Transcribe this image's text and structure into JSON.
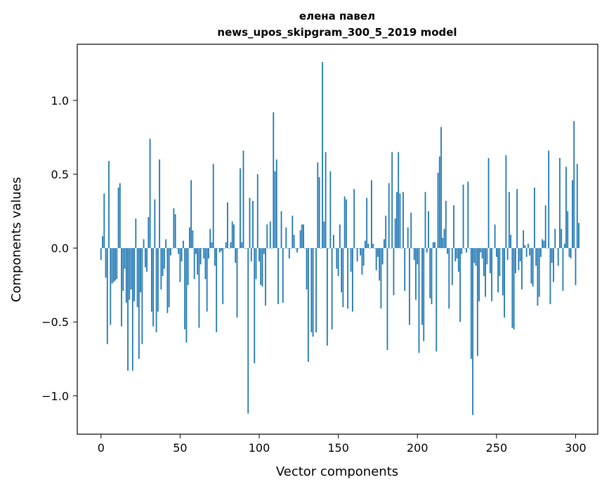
{
  "chart_data": {
    "type": "bar",
    "title": "елена павел",
    "subtitle": "news_upos_skipgram_300_5_2019 model",
    "xlabel": "Vector components",
    "ylabel": "Components values",
    "xlim": [
      -15,
      314
    ],
    "ylim": [
      -1.26,
      1.38
    ],
    "xticks": [
      0,
      50,
      100,
      150,
      200,
      250,
      300
    ],
    "yticks": [
      1.0,
      0.5,
      0.0,
      -0.5,
      -1.0
    ],
    "ytick_labels": [
      "1.0",
      "0.5",
      "0.0",
      "−0.5",
      "−1.0"
    ],
    "grid": false,
    "bar_color": "#1f77b4",
    "x_start": 0,
    "values": [
      -0.08,
      0.08,
      0.37,
      -0.2,
      -0.65,
      0.59,
      -0.52,
      -0.24,
      -0.23,
      -0.22,
      -0.21,
      0.41,
      0.44,
      -0.53,
      -0.29,
      -0.14,
      -0.37,
      -0.83,
      -0.35,
      -0.28,
      -0.83,
      -0.36,
      0.2,
      -0.4,
      -0.75,
      -0.3,
      -0.65,
      0.06,
      -0.13,
      -0.16,
      0.21,
      0.74,
      -0.43,
      -0.53,
      0.33,
      -0.57,
      -0.43,
      0.6,
      -0.28,
      -0.19,
      -0.14,
      0.06,
      -0.44,
      -0.4,
      -0.05,
      0.0,
      0.27,
      0.23,
      0.0,
      -0.04,
      -0.23,
      -0.09,
      0.05,
      -0.55,
      -0.64,
      -0.25,
      0.14,
      0.46,
      0.12,
      -0.21,
      -0.04,
      -0.18,
      -0.54,
      -0.11,
      0.0,
      -0.07,
      -0.21,
      -0.43,
      -0.07,
      0.13,
      0.04,
      0.57,
      -0.12,
      -0.57,
      0.0,
      -0.03,
      -0.02,
      -0.38,
      0.0,
      0.04,
      0.31,
      0.0,
      0.04,
      0.18,
      0.16,
      -0.1,
      -0.47,
      0.0,
      0.54,
      0.04,
      0.66,
      0.0,
      0.0,
      -1.12,
      0.34,
      -0.09,
      0.32,
      -0.78,
      -0.21,
      0.5,
      -0.09,
      -0.25,
      -0.26,
      -0.04,
      -0.39,
      0.16,
      0.0,
      0.18,
      0.0,
      0.92,
      0.52,
      0.6,
      -0.38,
      0.0,
      0.25,
      -0.37,
      0.0,
      0.14,
      0.0,
      -0.07,
      0.0,
      0.22,
      0.09,
      0.0,
      -0.03,
      0.0,
      0.12,
      0.16,
      0.16,
      0.0,
      -0.28,
      -0.77,
      0.0,
      -0.57,
      -0.6,
      0.0,
      -0.57,
      0.58,
      0.48,
      0.0,
      1.26,
      0.18,
      0.65,
      -0.66,
      0.0,
      0.52,
      -0.55,
      0.09,
      0.0,
      -0.14,
      -0.19,
      0.16,
      -0.3,
      -0.4,
      0.35,
      0.33,
      -0.41,
      0.0,
      -0.16,
      -0.43,
      0.4,
      0.0,
      -0.09,
      0.0,
      -0.05,
      -0.18,
      -0.12,
      0.05,
      0.34,
      0.03,
      0.0,
      0.46,
      0.03,
      0.0,
      -0.15,
      -0.06,
      -0.22,
      -0.41,
      -0.11,
      0.06,
      0.22,
      -0.69,
      0.44,
      0.0,
      0.65,
      -0.32,
      0.2,
      0.38,
      0.65,
      0.37,
      0.0,
      0.38,
      -0.29,
      0.0,
      0.14,
      -0.52,
      0.24,
      0.0,
      -0.08,
      -0.35,
      -0.11,
      -0.71,
      0.0,
      -0.52,
      -0.63,
      0.38,
      -0.03,
      0.25,
      -0.34,
      -0.38,
      0.04,
      0.04,
      -0.7,
      0.51,
      0.62,
      0.82,
      0.07,
      0.13,
      0.32,
      -0.04,
      -0.41,
      0.0,
      -0.25,
      0.29,
      -0.09,
      -0.07,
      -0.16,
      -0.5,
      -0.04,
      0.43,
      0.0,
      -0.03,
      0.45,
      0.0,
      -0.75,
      -1.13,
      -0.1,
      -0.12,
      -0.73,
      -0.36,
      -0.03,
      -0.07,
      -0.19,
      -0.33,
      -0.11,
      0.61,
      -0.17,
      -0.36,
      0.0,
      0.16,
      -0.06,
      -0.3,
      -0.19,
      0.0,
      -0.32,
      -0.47,
      0.63,
      -0.08,
      0.38,
      0.09,
      -0.54,
      -0.55,
      -0.17,
      0.4,
      -0.15,
      -0.09,
      -0.28,
      0.12,
      0.02,
      -0.06,
      0.03,
      -0.05,
      -0.24,
      -0.26,
      0.41,
      -0.12,
      -0.39,
      -0.33,
      -0.06,
      0.06,
      0.05,
      0.29,
      0.0,
      0.66,
      -0.38,
      -0.1,
      -0.23,
      0.13,
      0.0,
      -0.12,
      0.61,
      0.13,
      -0.29,
      0.03,
      0.55,
      0.25,
      -0.06,
      -0.07,
      0.46,
      0.86,
      -0.25,
      0.57,
      0.17
    ]
  }
}
